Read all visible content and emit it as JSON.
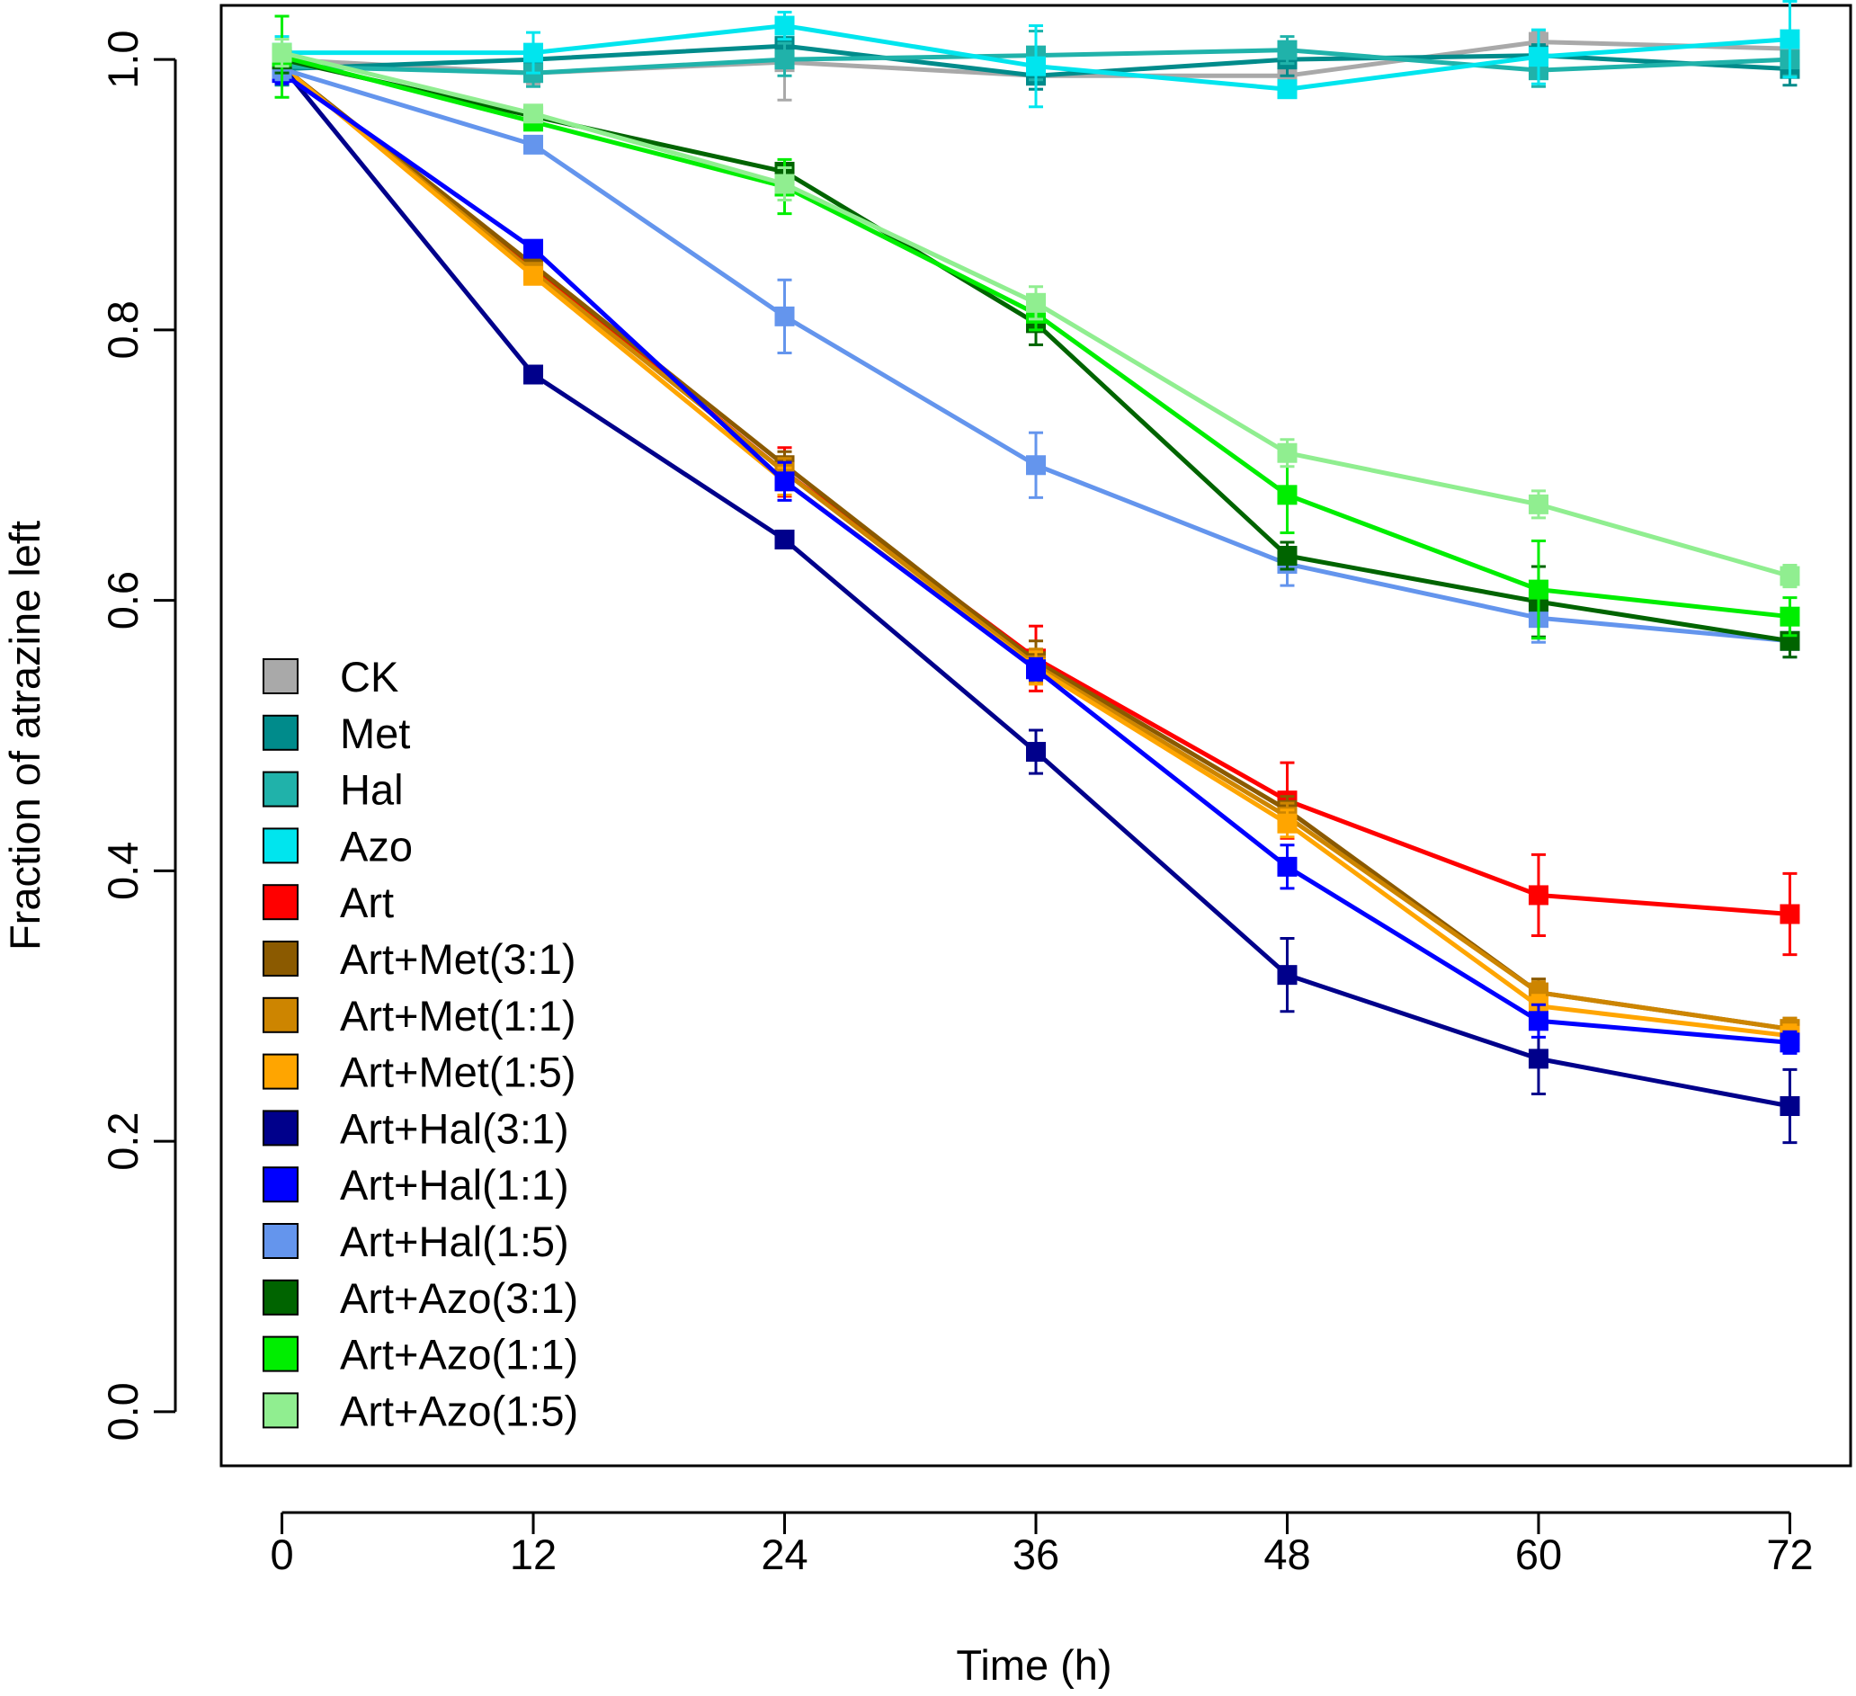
{
  "chart_data": {
    "type": "line",
    "title": "",
    "xlabel": "Time (h)",
    "ylabel": "Fraction of atrazine left",
    "x": [
      0,
      12,
      24,
      36,
      48,
      60,
      72
    ],
    "x_tick_labels": [
      "0",
      "12",
      "24",
      "36",
      "48",
      "60",
      "72"
    ],
    "y_ticks": [
      0.0,
      0.2,
      0.4,
      0.6,
      0.8,
      1.0
    ],
    "y_tick_labels": [
      "0.0",
      "0.2",
      "0.4",
      "0.6",
      "0.8",
      "1.0"
    ],
    "xlim": [
      -2.9,
      74.9
    ],
    "ylim": [
      -0.04,
      1.04
    ],
    "grid": false,
    "legend_position": "bottom-left",
    "series": [
      {
        "name": "CK",
        "color": "#A9A9A9",
        "values": [
          1.0,
          0.99,
          0.998,
          0.988,
          0.988,
          1.013,
          1.008
        ],
        "errors": [
          0.01,
          0.008,
          0.028,
          0.01,
          0.01,
          0.008,
          0.01
        ]
      },
      {
        "name": "Met",
        "color": "#008B8B",
        "values": [
          0.993,
          1.0,
          1.01,
          0.988,
          1.0,
          1.003,
          0.993
        ],
        "errors": [
          0.012,
          0.008,
          0.01,
          0.01,
          0.012,
          0.008,
          0.012
        ]
      },
      {
        "name": "Hal",
        "color": "#20B2AA",
        "values": [
          0.995,
          0.99,
          1.0,
          1.003,
          1.007,
          0.992,
          1.0
        ],
        "errors": [
          0.012,
          0.01,
          0.012,
          0.018,
          0.01,
          0.012,
          0.012
        ]
      },
      {
        "name": "Azo",
        "color": "#00E5EE",
        "values": [
          1.005,
          1.005,
          1.025,
          0.995,
          0.978,
          1.002,
          1.015
        ],
        "errors": [
          0.012,
          0.015,
          0.01,
          0.03,
          0.005,
          0.02,
          0.028
        ]
      },
      {
        "name": "Art",
        "color": "#FF0000",
        "values": [
          0.995,
          0.845,
          0.695,
          0.557,
          0.452,
          0.382,
          0.368
        ],
        "errors": [
          0.01,
          0.008,
          0.018,
          0.024,
          0.028,
          0.03,
          0.03
        ]
      },
      {
        "name": "Art+Met(3:1)",
        "color": "#8B5A00",
        "values": [
          0.995,
          0.848,
          0.7,
          0.555,
          0.445,
          0.31,
          0.283
        ],
        "errors": [
          0.008,
          0.006,
          0.01,
          0.015,
          0.01,
          0.01,
          0.008
        ]
      },
      {
        "name": "Art+Met(1:1)",
        "color": "#CD8500",
        "values": [
          0.995,
          0.843,
          0.695,
          0.552,
          0.44,
          0.31,
          0.283
        ],
        "errors": [
          0.008,
          0.006,
          0.01,
          0.012,
          0.01,
          0.008,
          0.008
        ]
      },
      {
        "name": "Art+Met(1:5)",
        "color": "#FFA500",
        "values": [
          0.995,
          0.84,
          0.688,
          0.55,
          0.435,
          0.3,
          0.278
        ],
        "errors": [
          0.008,
          0.006,
          0.01,
          0.012,
          0.01,
          0.008,
          0.008
        ]
      },
      {
        "name": "Art+Hal(3:1)",
        "color": "#00008B",
        "values": [
          0.995,
          0.767,
          0.645,
          0.488,
          0.323,
          0.261,
          0.226
        ],
        "errors": [
          0.008,
          0.006,
          0.006,
          0.016,
          0.027,
          0.026,
          0.027
        ]
      },
      {
        "name": "Art+Hal(1:1)",
        "color": "#0000FF",
        "values": [
          0.99,
          0.86,
          0.688,
          0.549,
          0.403,
          0.289,
          0.273
        ],
        "errors": [
          0.008,
          0.006,
          0.014,
          0.008,
          0.016,
          0.012,
          0.008
        ]
      },
      {
        "name": "Art+Hal(1:5)",
        "color": "#6495ED",
        "values": [
          0.993,
          0.937,
          0.81,
          0.7,
          0.627,
          0.587,
          0.57
        ],
        "errors": [
          0.008,
          0.006,
          0.027,
          0.024,
          0.016,
          0.018,
          0.012
        ]
      },
      {
        "name": "Art+Azo(3:1)",
        "color": "#006400",
        "values": [
          1.0,
          0.958,
          0.917,
          0.805,
          0.633,
          0.599,
          0.57
        ],
        "errors": [
          0.01,
          0.006,
          0.006,
          0.016,
          0.01,
          0.026,
          0.012
        ]
      },
      {
        "name": "Art+Azo(1:1)",
        "color": "#00EE00",
        "values": [
          1.002,
          0.954,
          0.906,
          0.812,
          0.678,
          0.608,
          0.588
        ],
        "errors": [
          0.03,
          0.006,
          0.02,
          0.012,
          0.028,
          0.036,
          0.014
        ]
      },
      {
        "name": "Art+Azo(1:5)",
        "color": "#90EE90",
        "values": [
          1.005,
          0.96,
          0.908,
          0.82,
          0.709,
          0.671,
          0.618
        ],
        "errors": [
          0.01,
          0.006,
          0.012,
          0.012,
          0.01,
          0.01,
          0.008
        ]
      }
    ]
  }
}
